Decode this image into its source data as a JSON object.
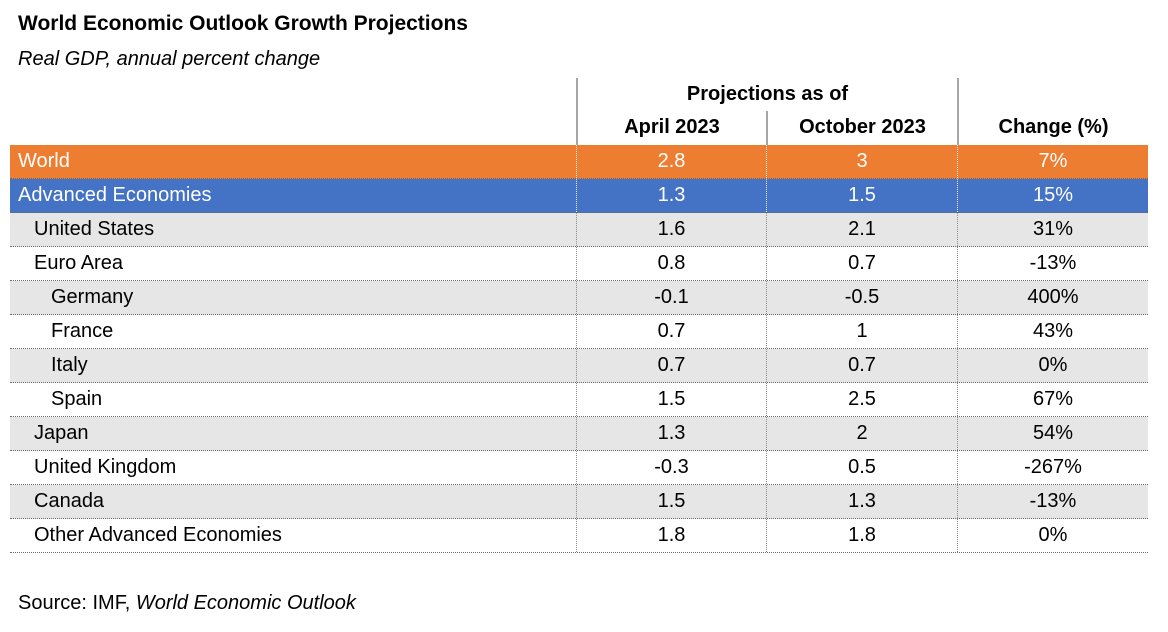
{
  "title": "World Economic Outlook Growth Projections",
  "subtitle": "Real GDP, annual percent change",
  "chart_data": {
    "type": "table",
    "title": "World Economic Outlook Growth Projections",
    "subtitle": "Real GDP, annual percent change",
    "group_header": "Projections as of",
    "group_header_spans": [
      "April 2023",
      "October 2023"
    ],
    "columns": [
      "April 2023",
      "October 2023",
      "Change (%)"
    ],
    "rows": [
      {
        "label": "World",
        "indent": 0,
        "highlight": "orange",
        "april_2023": "2.8",
        "october_2023": "3",
        "change_pct": "7%"
      },
      {
        "label": "Advanced Economies",
        "indent": 0,
        "highlight": "blue",
        "april_2023": "1.3",
        "october_2023": "1.5",
        "change_pct": "15%"
      },
      {
        "label": "United States",
        "indent": 1,
        "highlight": "gray",
        "april_2023": "1.6",
        "october_2023": "2.1",
        "change_pct": "31%"
      },
      {
        "label": "Euro Area",
        "indent": 1,
        "highlight": "white",
        "april_2023": "0.8",
        "october_2023": "0.7",
        "change_pct": "-13%"
      },
      {
        "label": "Germany",
        "indent": 2,
        "highlight": "gray",
        "april_2023": "-0.1",
        "october_2023": "-0.5",
        "change_pct": "400%"
      },
      {
        "label": "France",
        "indent": 2,
        "highlight": "white",
        "april_2023": "0.7",
        "october_2023": "1",
        "change_pct": "43%"
      },
      {
        "label": "Italy",
        "indent": 2,
        "highlight": "gray",
        "april_2023": "0.7",
        "october_2023": "0.7",
        "change_pct": "0%"
      },
      {
        "label": "Spain",
        "indent": 2,
        "highlight": "white",
        "april_2023": "1.5",
        "october_2023": "2.5",
        "change_pct": "67%"
      },
      {
        "label": "Japan",
        "indent": 1,
        "highlight": "gray",
        "april_2023": "1.3",
        "october_2023": "2",
        "change_pct": "54%"
      },
      {
        "label": "United Kingdom",
        "indent": 1,
        "highlight": "white",
        "april_2023": "-0.3",
        "october_2023": "0.5",
        "change_pct": "-267%"
      },
      {
        "label": "Canada",
        "indent": 1,
        "highlight": "gray",
        "april_2023": "1.5",
        "october_2023": "1.3",
        "change_pct": "-13%"
      },
      {
        "label": "Other Advanced Economies",
        "indent": 1,
        "highlight": "white",
        "april_2023": "1.8",
        "october_2023": "1.8",
        "change_pct": "0%"
      }
    ]
  },
  "source": {
    "prefix": "Source: IMF, ",
    "publication": "World Economic Outlook"
  },
  "colors": {
    "world_row": "#ED7D31",
    "advanced_economies_row": "#4472C4",
    "alt_row": "#E7E6E6",
    "header_rule": "#A6A6A6"
  }
}
